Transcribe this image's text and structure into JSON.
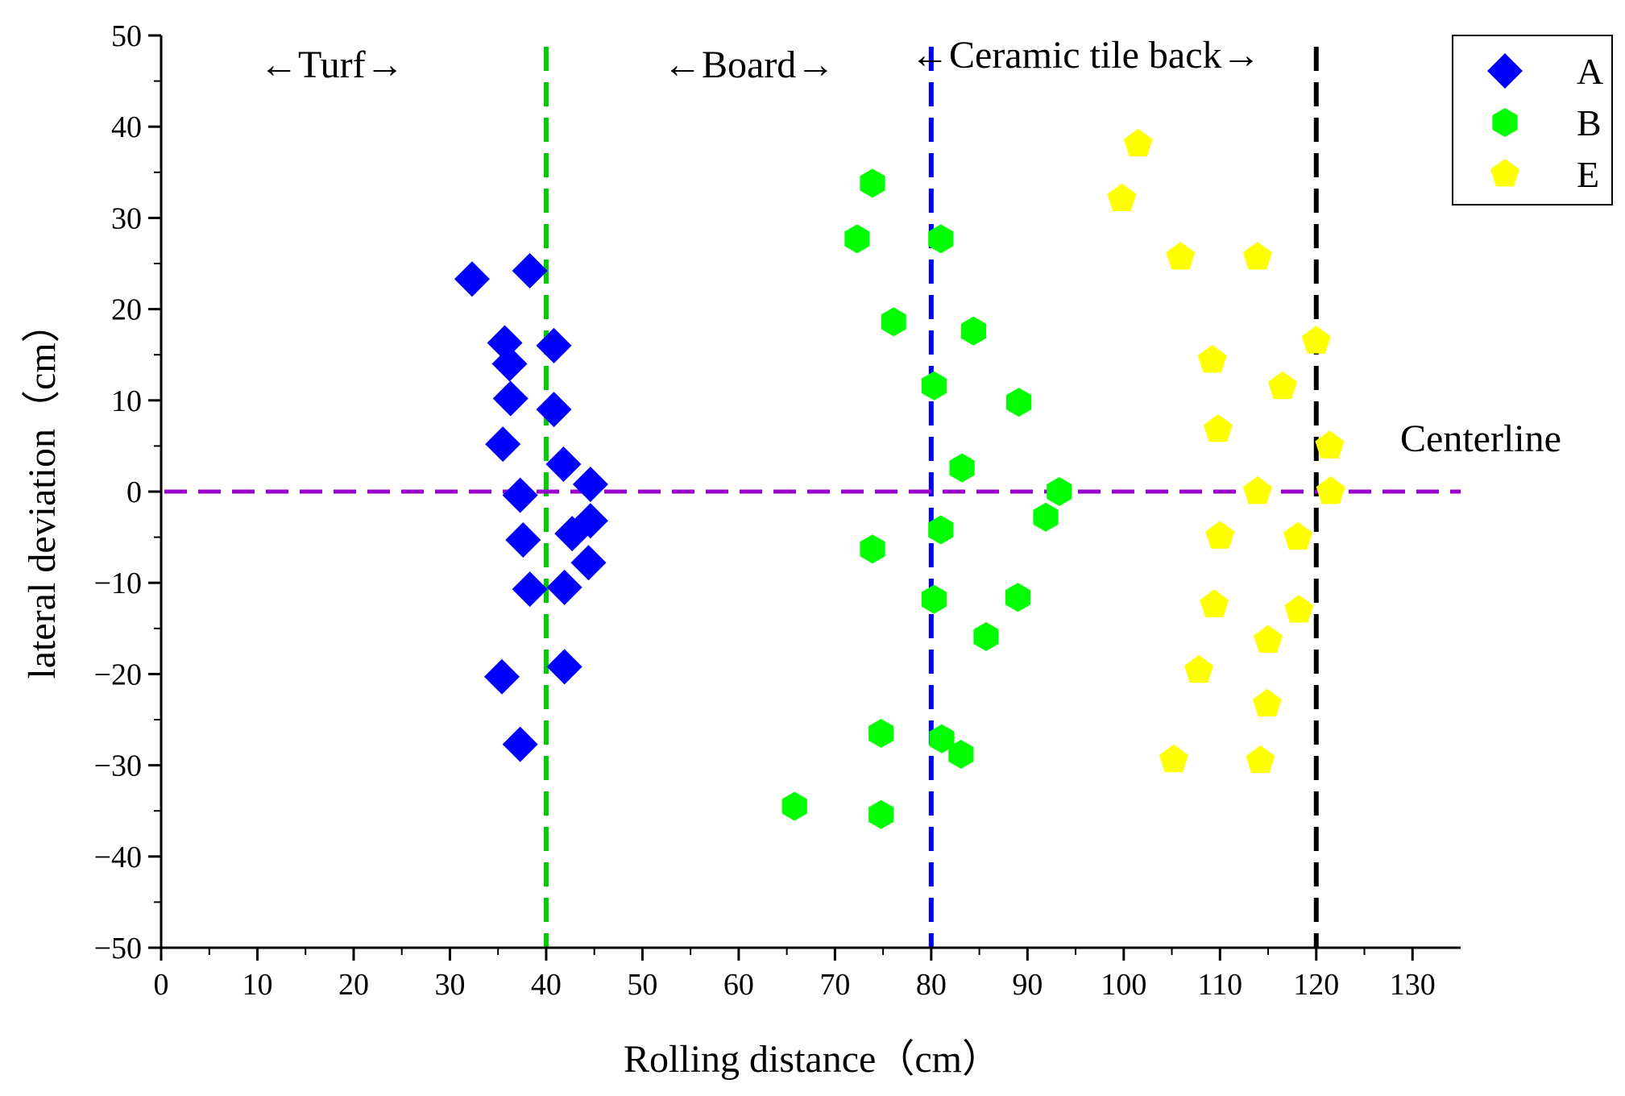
{
  "chart_data": {
    "type": "scatter",
    "xlabel": "Rolling distance（cm）",
    "ylabel": "lateral deviation（cm）",
    "xlim": [
      0,
      135
    ],
    "ylim": [
      -50,
      50
    ],
    "xticks": [
      0,
      10,
      20,
      30,
      40,
      50,
      60,
      70,
      80,
      90,
      100,
      110,
      120,
      130
    ],
    "yticks": [
      -50,
      -40,
      -30,
      -20,
      -10,
      0,
      10,
      20,
      30,
      40,
      50
    ],
    "legend_position": "top-right",
    "series": [
      {
        "name": "A",
        "marker": "diamond",
        "color": "#0000ff",
        "points": [
          [
            32.3,
            23.3
          ],
          [
            38.3,
            24.2
          ],
          [
            35.7,
            16.3
          ],
          [
            40.8,
            16.0
          ],
          [
            36.2,
            14.0
          ],
          [
            36.3,
            10.2
          ],
          [
            40.8,
            9.0
          ],
          [
            35.5,
            5.2
          ],
          [
            41.8,
            3.0
          ],
          [
            44.6,
            0.8
          ],
          [
            37.3,
            -0.4
          ],
          [
            37.6,
            -5.3
          ],
          [
            42.7,
            -4.6
          ],
          [
            44.6,
            -3.2
          ],
          [
            44.4,
            -7.8
          ],
          [
            38.3,
            -10.7
          ],
          [
            41.9,
            -10.5
          ],
          [
            35.4,
            -20.3
          ],
          [
            41.9,
            -19.2
          ],
          [
            37.3,
            -27.7
          ]
        ]
      },
      {
        "name": "B",
        "marker": "hexagon",
        "color": "#00ff00",
        "points": [
          [
            73.9,
            33.8
          ],
          [
            72.3,
            27.7
          ],
          [
            81.0,
            27.7
          ],
          [
            76.1,
            18.6
          ],
          [
            84.4,
            17.6
          ],
          [
            80.3,
            11.6
          ],
          [
            89.1,
            9.8
          ],
          [
            83.2,
            2.6
          ],
          [
            93.3,
            0.0
          ],
          [
            91.9,
            -2.8
          ],
          [
            81.0,
            -4.2
          ],
          [
            73.9,
            -6.3
          ],
          [
            80.3,
            -11.8
          ],
          [
            89.0,
            -11.6
          ],
          [
            85.7,
            -15.9
          ],
          [
            74.8,
            -26.5
          ],
          [
            81.1,
            -27.1
          ],
          [
            83.1,
            -28.8
          ],
          [
            65.8,
            -34.5
          ],
          [
            74.8,
            -35.4
          ]
        ]
      },
      {
        "name": "E",
        "marker": "pentagon",
        "color": "#ffff00",
        "points": [
          [
            101.5,
            38.1
          ],
          [
            99.8,
            32.1
          ],
          [
            105.9,
            25.7
          ],
          [
            113.9,
            25.7
          ],
          [
            120.0,
            16.5
          ],
          [
            109.2,
            14.4
          ],
          [
            116.5,
            11.5
          ],
          [
            109.8,
            6.8
          ],
          [
            121.4,
            5.0
          ],
          [
            113.9,
            0.0
          ],
          [
            121.5,
            0.0
          ],
          [
            110.0,
            -4.9
          ],
          [
            118.1,
            -5.0
          ],
          [
            109.4,
            -12.4
          ],
          [
            118.2,
            -13.0
          ],
          [
            115.0,
            -16.3
          ],
          [
            107.8,
            -19.6
          ],
          [
            114.9,
            -23.3
          ],
          [
            105.2,
            -29.4
          ],
          [
            114.2,
            -29.5
          ]
        ]
      }
    ],
    "reference_lines": [
      {
        "orientation": "vertical",
        "value": 40,
        "color": "#00cc00",
        "style": "dashed"
      },
      {
        "orientation": "vertical",
        "value": 80,
        "color": "#0000ff",
        "style": "dashed"
      },
      {
        "orientation": "vertical",
        "value": 120,
        "color": "#000000",
        "style": "dashed"
      },
      {
        "orientation": "horizontal",
        "value": 0,
        "color": "#9900cc",
        "style": "dashed"
      }
    ],
    "annotations": {
      "turf": "←Turf→",
      "board": "←Board→",
      "ceramic": "←Ceramic tile back→",
      "centerline": "Centerline"
    }
  }
}
